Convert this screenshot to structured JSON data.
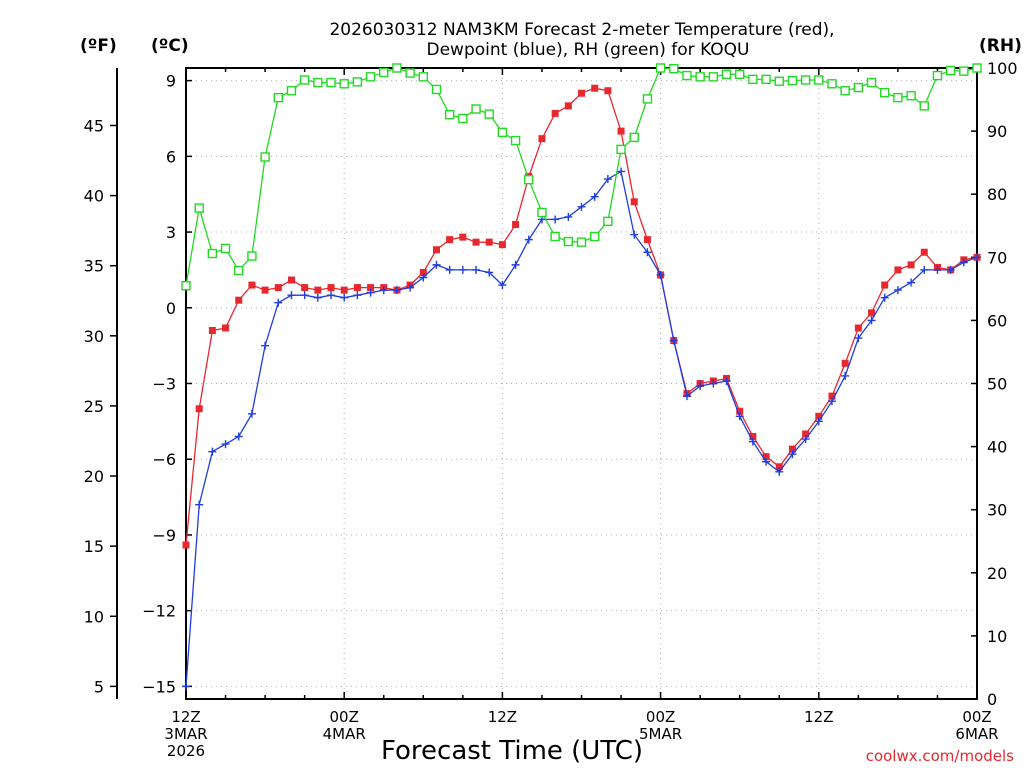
{
  "chart_data": {
    "type": "line",
    "title_line1": "2026030312 NAM3KM Forecast 2-meter Temperature (red),",
    "title_line2": "Dewpoint (blue), RH (green) for KOQU",
    "xlabel": "Forecast Time (UTC)",
    "credit": "coolwx.com/models",
    "units": {
      "fahrenheit": "(ºF)",
      "celsius": "(ºC)",
      "rh": "(RH)"
    },
    "x_range_hours": [
      0,
      60
    ],
    "y_celsius_range": [
      -15.5,
      9.5
    ],
    "y_rh_range": [
      0,
      100
    ],
    "fahrenheit_ticks": [
      "5",
      "10",
      "15",
      "20",
      "25",
      "30",
      "35",
      "40",
      "45"
    ],
    "celsius_ticks": [
      "−15",
      "−12",
      "−9",
      "−6",
      "−3",
      "0",
      "3",
      "6",
      "9"
    ],
    "rh_ticks": [
      "0",
      "10",
      "20",
      "30",
      "40",
      "50",
      "60",
      "70",
      "80",
      "90",
      "100"
    ],
    "x_ticks": [
      {
        "hour": 0,
        "line1": "12Z",
        "line2": "3MAR",
        "line3": "2026"
      },
      {
        "hour": 12,
        "line1": "00Z",
        "line2": "4MAR",
        "line3": ""
      },
      {
        "hour": 24,
        "line1": "12Z",
        "line2": "",
        "line3": ""
      },
      {
        "hour": 36,
        "line1": "00Z",
        "line2": "5MAR",
        "line3": ""
      },
      {
        "hour": 48,
        "line1": "12Z",
        "line2": "",
        "line3": ""
      },
      {
        "hour": 60,
        "line1": "00Z",
        "line2": "6MAR",
        "line3": ""
      }
    ],
    "hours": [
      0,
      1,
      2,
      3,
      4,
      5,
      6,
      7,
      8,
      9,
      10,
      11,
      12,
      13,
      14,
      15,
      16,
      17,
      18,
      19,
      20,
      21,
      22,
      23,
      24,
      25,
      26,
      27,
      28,
      29,
      30,
      31,
      32,
      33,
      34,
      35,
      36,
      37,
      38,
      39,
      40,
      41,
      42,
      43,
      44,
      45,
      46,
      47,
      48,
      49,
      50,
      51,
      52,
      53,
      54,
      55,
      56,
      57,
      58,
      59,
      60
    ],
    "series": [
      {
        "name": "Temperature",
        "unit": "°C",
        "color": "#e8282f",
        "marker": "filled-square",
        "values": [
          -9.4,
          -4.0,
          -0.9,
          -0.8,
          0.3,
          0.9,
          0.7,
          0.8,
          1.1,
          0.8,
          0.7,
          0.8,
          0.7,
          0.8,
          0.8,
          0.8,
          0.7,
          0.9,
          1.4,
          2.3,
          2.7,
          2.8,
          2.6,
          2.6,
          2.5,
          3.3,
          5.2,
          6.7,
          7.7,
          8.0,
          8.5,
          8.7,
          8.6,
          7.0,
          4.2,
          2.7,
          1.3,
          -1.3,
          -3.4,
          -3.0,
          -2.9,
          -2.8,
          -4.1,
          -5.1,
          -5.9,
          -6.3,
          -5.6,
          -5.0,
          -4.3,
          -3.5,
          -2.2,
          -0.8,
          -0.2,
          0.9,
          1.5,
          1.7,
          2.2,
          1.6,
          1.5,
          1.9,
          2.0
        ]
      },
      {
        "name": "Dewpoint",
        "unit": "°C",
        "color": "#1f3de0",
        "marker": "plus",
        "values": [
          -15.0,
          -7.8,
          -5.7,
          -5.4,
          -5.1,
          -4.2,
          -1.5,
          0.2,
          0.5,
          0.5,
          0.4,
          0.5,
          0.4,
          0.5,
          0.6,
          0.7,
          0.7,
          0.8,
          1.2,
          1.7,
          1.5,
          1.5,
          1.5,
          1.4,
          0.9,
          1.7,
          2.7,
          3.5,
          3.5,
          3.6,
          4.0,
          4.4,
          5.1,
          5.4,
          2.9,
          2.2,
          1.3,
          -1.3,
          -3.5,
          -3.1,
          -3.0,
          -2.9,
          -4.3,
          -5.3,
          -6.1,
          -6.5,
          -5.8,
          -5.2,
          -4.5,
          -3.7,
          -2.7,
          -1.2,
          -0.5,
          0.4,
          0.7,
          1.0,
          1.5,
          1.5,
          1.5,
          1.8,
          2.0
        ]
      },
      {
        "name": "RH",
        "unit": "%",
        "color": "#22d922",
        "marker": "open-square",
        "values": [
          65.5,
          77.8,
          70.6,
          71.4,
          67.9,
          70.2,
          85.9,
          95.3,
          96.4,
          98.1,
          97.7,
          97.7,
          97.5,
          97.8,
          98.6,
          99.3,
          100.0,
          99.2,
          98.6,
          96.6,
          92.6,
          92.0,
          93.5,
          92.7,
          89.8,
          88.5,
          82.3,
          77.1,
          73.3,
          72.5,
          72.4,
          73.3,
          75.7,
          87.1,
          89.0,
          95.1,
          100.0,
          99.9,
          98.8,
          98.6,
          98.6,
          99.0,
          99.0,
          98.2,
          98.2,
          97.9,
          98.0,
          98.1,
          98.1,
          97.5,
          96.4,
          96.9,
          97.7,
          96.1,
          95.3,
          95.6,
          94.0,
          98.8,
          99.6,
          99.5,
          100.0
        ]
      }
    ]
  }
}
